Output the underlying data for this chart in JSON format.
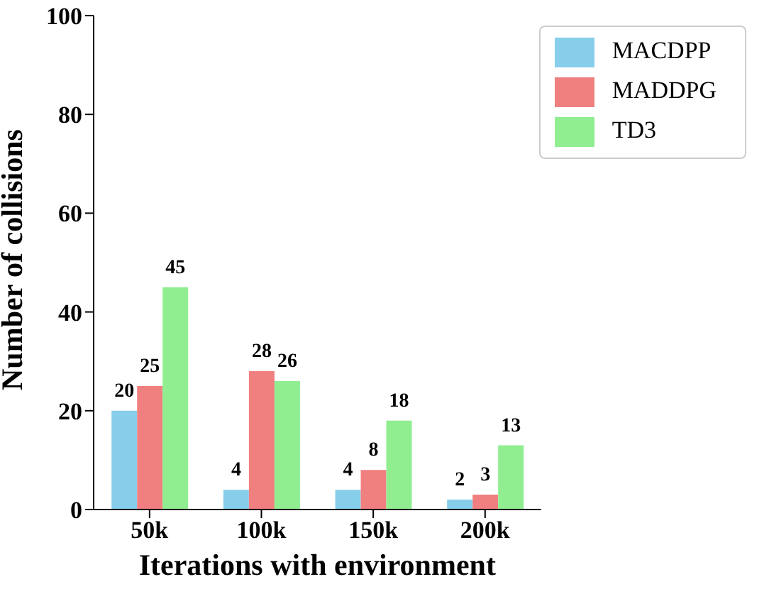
{
  "chart_data": {
    "type": "bar",
    "xlabel": "Iterations with environment",
    "ylabel": "Number of collisions",
    "categories": [
      "50k",
      "100k",
      "150k",
      "200k"
    ],
    "series": [
      {
        "name": "MACDPP",
        "color": "#87ceeb",
        "values": [
          20,
          4,
          4,
          2
        ]
      },
      {
        "name": "MADDPG",
        "color": "#f08080",
        "values": [
          25,
          28,
          8,
          3
        ]
      },
      {
        "name": "TD3",
        "color": "#90ee90",
        "values": [
          45,
          26,
          18,
          13
        ]
      }
    ],
    "ylim": [
      0,
      100
    ],
    "yticks": [
      0,
      20,
      40,
      60,
      80,
      100
    ],
    "data_labels": true,
    "grid": false,
    "legend": "top right"
  }
}
